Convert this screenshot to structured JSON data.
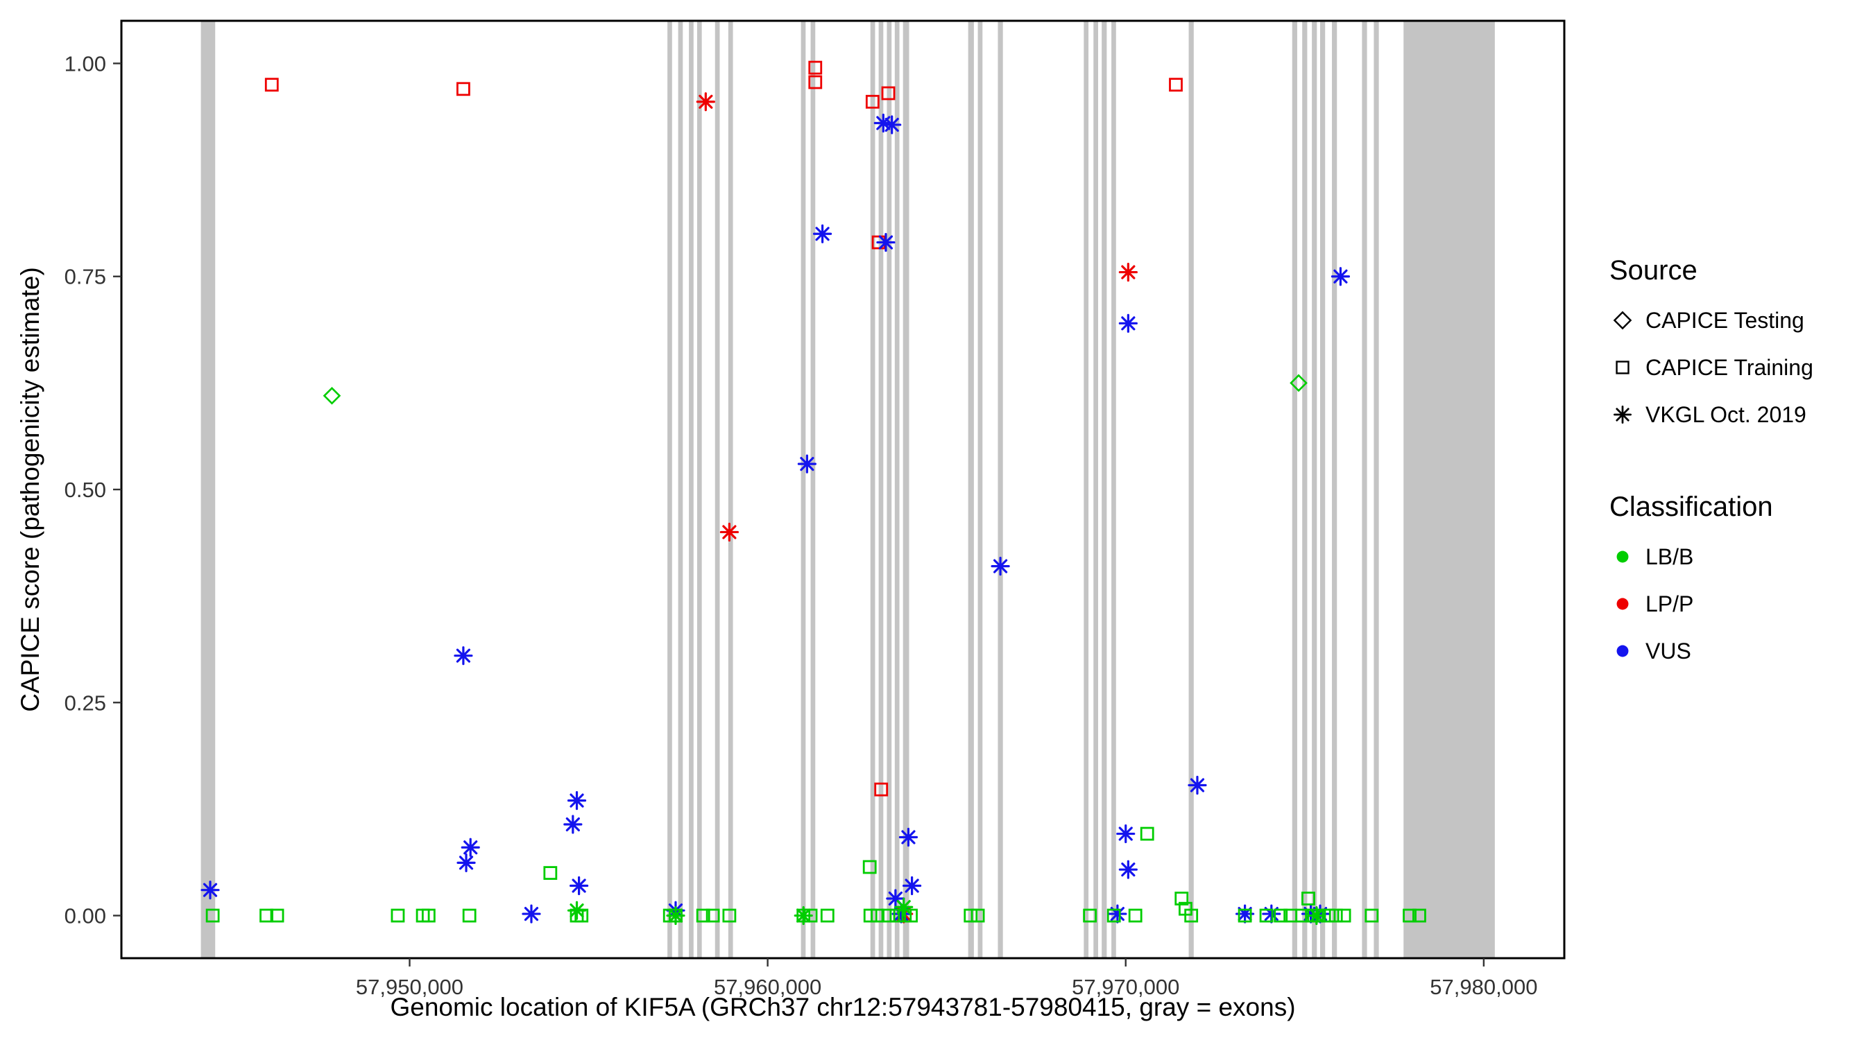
{
  "chart_data": {
    "type": "scatter",
    "title": "",
    "xlabel": "Genomic location of KIF5A (GRCh37 chr12:57943781-57980415, gray = exons)",
    "ylabel": "CAPICE score (pathogenicity estimate)",
    "xlim": [
      57941950,
      57982250
    ],
    "ylim": [
      -0.05,
      1.05
    ],
    "x_ticks": [
      57950000,
      57960000,
      57970000,
      57980000
    ],
    "x_tick_labels": [
      "57,950,000",
      "57,960,000",
      "57,970,000",
      "57,980,000"
    ],
    "y_ticks": [
      0,
      0.25,
      0.5,
      0.75,
      1.0
    ],
    "y_tick_labels": [
      "0.00",
      "0.25",
      "0.50",
      "0.75",
      "1.00"
    ],
    "grid": false,
    "legend_position": "right",
    "colors": {
      "lb_b": "#00CD00",
      "lp_p": "#EE0000",
      "vus": "#1414EE",
      "exon": "#C4C4C4"
    },
    "exons": [
      [
        57944170,
        57944570
      ],
      [
        57957200,
        57957330
      ],
      [
        57957500,
        57957630
      ],
      [
        57957800,
        57957930
      ],
      [
        57958030,
        57958160
      ],
      [
        57958530,
        57958660
      ],
      [
        57958900,
        57959030
      ],
      [
        57960930,
        57961060
      ],
      [
        57961200,
        57961330
      ],
      [
        57962870,
        57963000
      ],
      [
        57963100,
        57963230
      ],
      [
        57963330,
        57963460
      ],
      [
        57963550,
        57963680
      ],
      [
        57963780,
        57963950
      ],
      [
        57965600,
        57965760
      ],
      [
        57965870,
        57966000
      ],
      [
        57966430,
        57966570
      ],
      [
        57968830,
        57968960
      ],
      [
        57969100,
        57969230
      ],
      [
        57969330,
        57969470
      ],
      [
        57969600,
        57969730
      ],
      [
        57971760,
        57971900
      ],
      [
        57974650,
        57974790
      ],
      [
        57974930,
        57975070
      ],
      [
        57975200,
        57975340
      ],
      [
        57975430,
        57975570
      ],
      [
        57975760,
        57975900
      ],
      [
        57976600,
        57976740
      ],
      [
        57976930,
        57977070
      ],
      [
        57977760,
        57980310
      ]
    ],
    "series": [
      {
        "name": "LP/P - CAPICE Training",
        "classification": "LP/P",
        "source": "CAPICE Training",
        "marker": "square",
        "color_key": "lp_p",
        "points": [
          [
            57946150,
            0.975
          ],
          [
            57951500,
            0.97
          ],
          [
            57961330,
            0.995
          ],
          [
            57961330,
            0.978
          ],
          [
            57962930,
            0.955
          ],
          [
            57963370,
            0.965
          ],
          [
            57963100,
            0.79
          ],
          [
            57963170,
            0.148
          ],
          [
            57971400,
            0.975
          ]
        ]
      },
      {
        "name": "LP/P - VKGL Oct. 2019",
        "classification": "LP/P",
        "source": "VKGL Oct. 2019",
        "marker": "asterisk",
        "color_key": "lp_p",
        "points": [
          [
            57958270,
            0.955
          ],
          [
            57958930,
            0.45
          ],
          [
            57970070,
            0.755
          ],
          [
            57963800,
            0.002
          ]
        ]
      },
      {
        "name": "VUS - VKGL Oct. 2019",
        "classification": "VUS",
        "source": "VKGL Oct. 2019",
        "marker": "asterisk",
        "color_key": "vus",
        "points": [
          [
            57944430,
            0.03
          ],
          [
            57951500,
            0.305
          ],
          [
            57951700,
            0.08
          ],
          [
            57951580,
            0.062
          ],
          [
            57953400,
            0.002
          ],
          [
            57954670,
            0.135
          ],
          [
            57954560,
            0.107
          ],
          [
            57954730,
            0.035
          ],
          [
            57957430,
            0.006
          ],
          [
            57961100,
            0.53
          ],
          [
            57961530,
            0.8
          ],
          [
            57963230,
            0.93
          ],
          [
            57963470,
            0.928
          ],
          [
            57963300,
            0.79
          ],
          [
            57963930,
            0.092
          ],
          [
            57964030,
            0.035
          ],
          [
            57963570,
            0.02
          ],
          [
            57963730,
            0.002
          ],
          [
            57966500,
            0.41
          ],
          [
            57970070,
            0.695
          ],
          [
            57970000,
            0.096
          ],
          [
            57970070,
            0.054
          ],
          [
            57969770,
            0.002
          ],
          [
            57972000,
            0.153
          ],
          [
            57976000,
            0.75
          ],
          [
            57973330,
            0.002
          ],
          [
            57974070,
            0.002
          ],
          [
            57975170,
            0.002
          ],
          [
            57975430,
            0.002
          ]
        ]
      },
      {
        "name": "LB/B - CAPICE Testing",
        "classification": "LB/B",
        "source": "CAPICE Testing",
        "marker": "diamond",
        "color_key": "lb_b",
        "points": [
          [
            57947830,
            0.61
          ],
          [
            57974830,
            0.625
          ]
        ]
      },
      {
        "name": "LB/B - CAPICE Training",
        "classification": "LB/B",
        "source": "CAPICE Training",
        "marker": "square",
        "color_key": "lb_b",
        "points": [
          [
            57953930,
            0.05
          ],
          [
            57962850,
            0.057
          ],
          [
            57970600,
            0.096
          ],
          [
            57971560,
            0.02
          ],
          [
            57971670,
            0.008
          ],
          [
            57975100,
            0.02
          ],
          [
            57944500,
            0
          ],
          [
            57946000,
            0
          ],
          [
            57946300,
            0
          ],
          [
            57949670,
            0
          ],
          [
            57950370,
            0
          ],
          [
            57950530,
            0
          ],
          [
            57951670,
            0
          ],
          [
            57954670,
            0
          ],
          [
            57954800,
            0
          ],
          [
            57957270,
            0
          ],
          [
            57957430,
            0
          ],
          [
            57958200,
            0
          ],
          [
            57958470,
            0
          ],
          [
            57958930,
            0
          ],
          [
            57961000,
            0
          ],
          [
            57961200,
            0
          ],
          [
            57961670,
            0
          ],
          [
            57962870,
            0
          ],
          [
            57963070,
            0
          ],
          [
            57963370,
            0
          ],
          [
            57963600,
            0
          ],
          [
            57963830,
            0
          ],
          [
            57964000,
            0
          ],
          [
            57965670,
            0
          ],
          [
            57965870,
            0
          ],
          [
            57969000,
            0
          ],
          [
            57969670,
            0
          ],
          [
            57970270,
            0
          ],
          [
            57971830,
            0
          ],
          [
            57973330,
            0
          ],
          [
            57973930,
            0
          ],
          [
            57974330,
            0
          ],
          [
            57974600,
            0
          ],
          [
            57974930,
            0
          ],
          [
            57975200,
            0
          ],
          [
            57975400,
            0
          ],
          [
            57975670,
            0
          ],
          [
            57975870,
            0
          ],
          [
            57976100,
            0
          ],
          [
            57976870,
            0
          ],
          [
            57977930,
            0
          ],
          [
            57978200,
            0
          ]
        ]
      },
      {
        "name": "LB/B - VKGL Oct. 2019",
        "classification": "LB/B",
        "source": "VKGL Oct. 2019",
        "marker": "asterisk",
        "color_key": "lb_b",
        "points": [
          [
            57954670,
            0.006
          ],
          [
            57957430,
            0
          ],
          [
            57961000,
            0
          ],
          [
            57963800,
            0.01
          ],
          [
            57975330,
            0
          ]
        ]
      }
    ],
    "legend": {
      "source": {
        "title": "Source",
        "items": [
          {
            "label": "CAPICE Testing",
            "marker": "diamond"
          },
          {
            "label": "CAPICE Training",
            "marker": "square"
          },
          {
            "label": "VKGL Oct. 2019",
            "marker": "asterisk"
          }
        ]
      },
      "classification": {
        "title": "Classification",
        "items": [
          {
            "label": "LB/B",
            "color_key": "lb_b"
          },
          {
            "label": "LP/P",
            "color_key": "lp_p"
          },
          {
            "label": "VUS",
            "color_key": "vus"
          }
        ]
      }
    }
  }
}
